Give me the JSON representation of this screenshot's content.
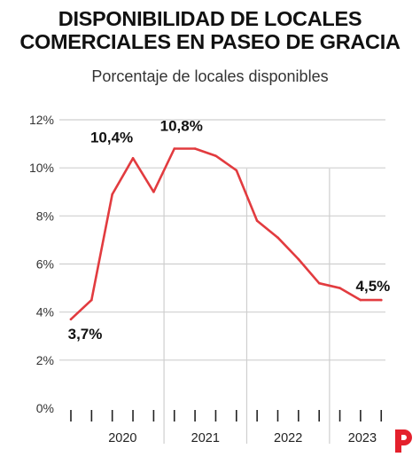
{
  "header": {
    "title_line1": "DISPONIBILIDAD DE LOCALES",
    "title_line2": "COMERCIALES EN PASEO DE GRACIA",
    "subtitle": "Porcentaje de locales disponibles"
  },
  "colors": {
    "line": "#e23b3f",
    "grid": "#cfcfcf",
    "axis": "#222222",
    "logo": "#e4202c"
  },
  "logo": {
    "icon": "publisher-p-logo-icon"
  },
  "chart_data": {
    "type": "line",
    "title": "",
    "xlabel": "",
    "ylabel": "",
    "ylim": [
      0,
      12
    ],
    "yticks": [
      "0%",
      "2%",
      "4%",
      "6%",
      "8%",
      "10%",
      "12%"
    ],
    "grid": true,
    "year_labels": [
      "2020",
      "2021",
      "2022",
      "2023"
    ],
    "x": [
      "2019-Q4",
      "2020-Q1",
      "2020-Q2",
      "2020-Q3",
      "2020-Q4",
      "2021-Q1",
      "2021-Q2",
      "2021-Q3",
      "2021-Q4",
      "2022-Q1",
      "2022-Q2",
      "2022-Q3",
      "2022-Q4",
      "2023-Q1",
      "2023-Q2",
      "2023-Q3"
    ],
    "series": [
      {
        "values": [
          3.7,
          4.5,
          8.9,
          10.4,
          9.0,
          10.8,
          10.8,
          10.5,
          9.9,
          7.8,
          7.1,
          6.2,
          5.2,
          5.0,
          4.5,
          4.5
        ]
      }
    ],
    "annotations": [
      {
        "index": 0,
        "text": "3,7%"
      },
      {
        "index": 3,
        "text": "10,4%"
      },
      {
        "index": 5,
        "text": "10,8%"
      },
      {
        "index": 14,
        "text": "4,5%"
      }
    ]
  }
}
